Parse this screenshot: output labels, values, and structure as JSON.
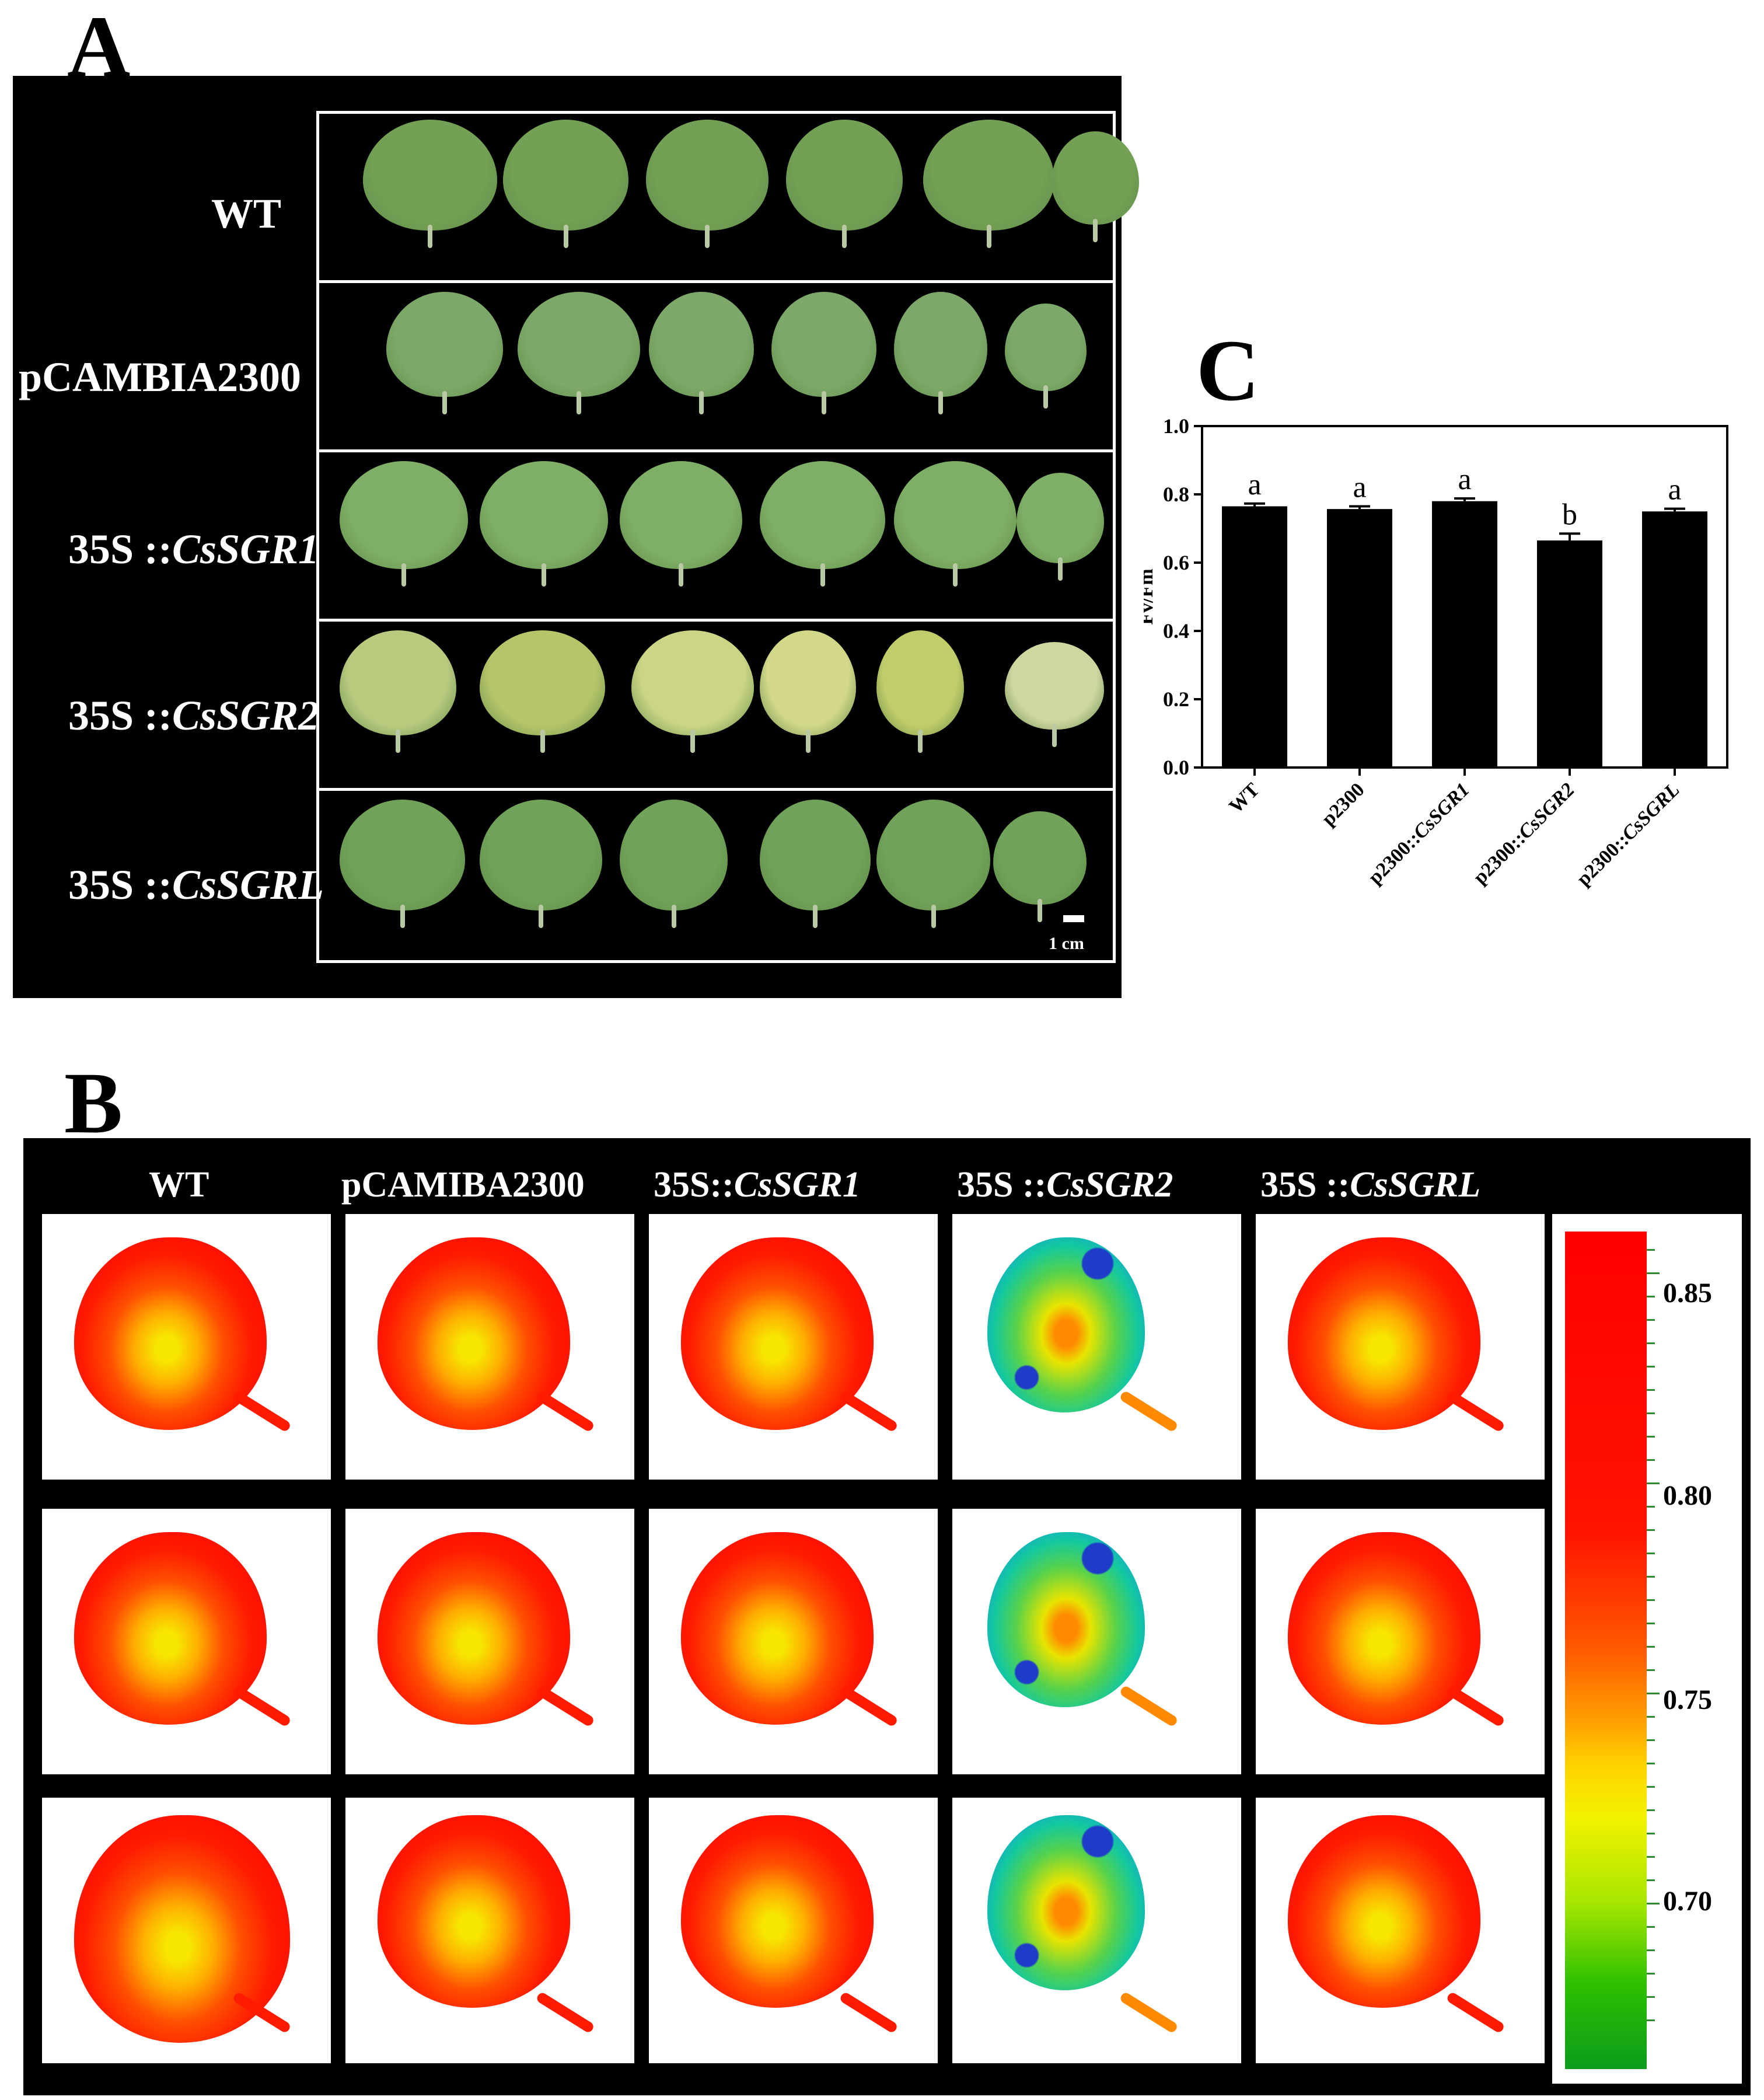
{
  "panels": {
    "a": "A",
    "b": "B",
    "c": "C"
  },
  "panelA": {
    "rows": [
      {
        "label_plain": "WT",
        "label_italic": ""
      },
      {
        "label_plain": "pCAMBIA2300",
        "label_italic": ""
      },
      {
        "label_plain": "35S ::",
        "label_italic": "CsSGR1"
      },
      {
        "label_plain": "35S ::",
        "label_italic": "CsSGR2"
      },
      {
        "label_plain": "35S ::",
        "label_italic": "CsSGRL"
      }
    ],
    "scale_bar": "1 cm"
  },
  "panelB": {
    "columns": [
      {
        "plain": "WT",
        "italic": ""
      },
      {
        "plain": "pCAMIBA2300",
        "italic": ""
      },
      {
        "plain": "35S::",
        "italic": "CsSGR1"
      },
      {
        "plain": "35S ::",
        "italic": "CsSGR2"
      },
      {
        "plain": "35S ::",
        "italic": "CsSGRL"
      }
    ],
    "legend": {
      "labels": [
        "0.85",
        "0.80",
        "0.75",
        "0.70"
      ],
      "colors": [
        "#ff0000",
        "#ff5a00",
        "#ffd400",
        "#0c9c1c"
      ]
    }
  },
  "chart_data": {
    "type": "bar",
    "title": "",
    "xlabel": "",
    "ylabel": "Fv/Fm",
    "categories": [
      {
        "plain": "WT",
        "italic": ""
      },
      {
        "plain": "p2300",
        "italic": ""
      },
      {
        "plain": "p2300::",
        "italic": "CsSGR1"
      },
      {
        "plain": "p2300::",
        "italic": "CsSGR2"
      },
      {
        "plain": "p2300::",
        "italic": "CsSGRL"
      }
    ],
    "values": [
      0.765,
      0.757,
      0.78,
      0.665,
      0.75
    ],
    "errors": [
      0.008,
      0.008,
      0.008,
      0.02,
      0.008
    ],
    "significance": [
      "a",
      "a",
      "a",
      "b",
      "a"
    ],
    "ylim": [
      0,
      1.0
    ],
    "yticks": [
      "0.0",
      "0.2",
      "0.4",
      "0.6",
      "0.8",
      "1.0"
    ],
    "bar_color": "#000000"
  }
}
